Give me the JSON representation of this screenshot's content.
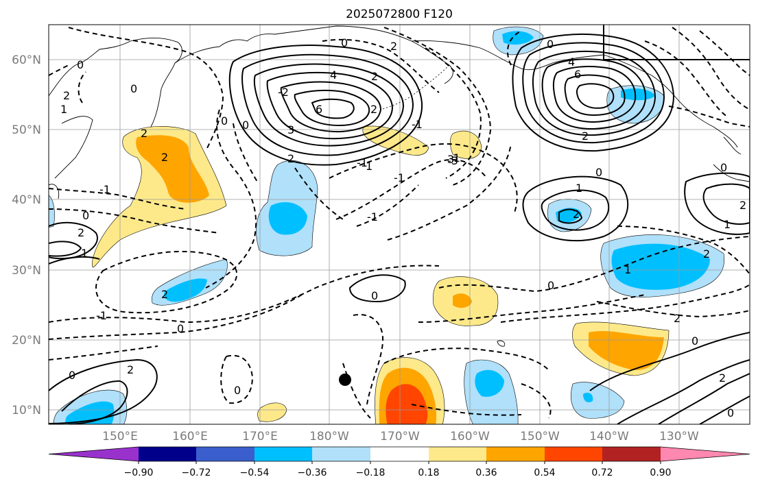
{
  "title": "2025072800 F120",
  "lat_labels": [
    "60°N",
    "50°N",
    "40°N",
    "30°N",
    "20°N",
    "10°N"
  ],
  "lon_labels": [
    "150°E",
    "160°E",
    "170°E",
    "180°W",
    "170°W",
    "160°W",
    "150°W",
    "140°W",
    "130°W"
  ],
  "colorbar": {
    "tick_labels": [
      "−0.90",
      "−0.72",
      "−0.54",
      "−0.36",
      "−0.18",
      "0.18",
      "0.36",
      "0.54",
      "0.72",
      "0.90"
    ],
    "colors": [
      "#9932cc",
      "#00008b",
      "#3a5fcd",
      "#00bfff",
      "#b0e0fa",
      "#ffffff",
      "#fde98a",
      "#ffa500",
      "#ff4500",
      "#b22222",
      "#ff88b0"
    ]
  },
  "contour_labels": [
    {
      "text": "0"
    },
    {
      "text": "2"
    },
    {
      "text": "1"
    },
    {
      "text": "0"
    },
    {
      "text": "-1"
    },
    {
      "text": "0"
    },
    {
      "text": "2"
    },
    {
      "text": "1"
    },
    {
      "text": "2"
    },
    {
      "text": "0"
    },
    {
      "text": "0"
    },
    {
      "text": "2"
    },
    {
      "text": "2"
    },
    {
      "text": "2"
    },
    {
      "text": "-1"
    },
    {
      "text": "2"
    },
    {
      "text": "-2"
    },
    {
      "text": "0"
    },
    {
      "text": "0"
    },
    {
      "text": "4"
    },
    {
      "text": "2"
    },
    {
      "text": "6"
    },
    {
      "text": "3"
    },
    {
      "text": "2"
    },
    {
      "text": "-1"
    },
    {
      "text": "1"
    },
    {
      "text": "-1"
    },
    {
      "text": "0"
    },
    {
      "text": "-1"
    },
    {
      "text": "3"
    },
    {
      "text": "0"
    },
    {
      "text": "4"
    },
    {
      "text": "6"
    },
    {
      "text": "2"
    },
    {
      "text": "0"
    },
    {
      "text": "1"
    },
    {
      "text": "2"
    },
    {
      "text": "0"
    },
    {
      "text": "1"
    },
    {
      "text": "2"
    },
    {
      "text": "2"
    },
    {
      "text": "0"
    },
    {
      "text": "0"
    },
    {
      "text": "2"
    },
    {
      "text": "1"
    },
    {
      "text": "0"
    },
    {
      "text": "2"
    },
    {
      "text": "0"
    },
    {
      "text": "0"
    },
    {
      "text": "2"
    },
    {
      "text": "-1"
    },
    {
      "text": "-3"
    },
    {
      "text": "-1"
    }
  ]
}
